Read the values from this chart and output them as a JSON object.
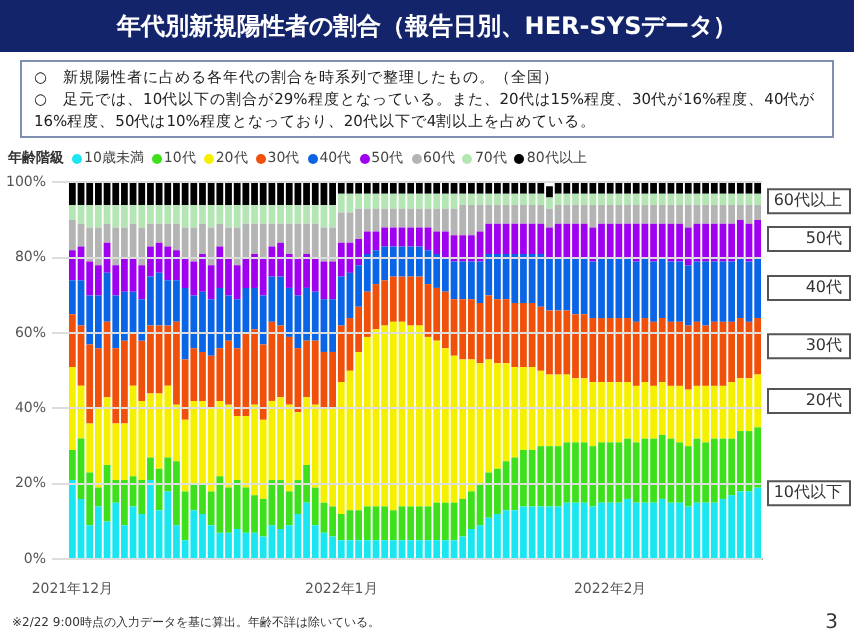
{
  "chart_data": {
    "type": "bar",
    "stacked": true,
    "title": "年代別新規陽性者の割合（報告日別、HER-SYSデータ）",
    "subtitle": "○　新規陽性者に占める各年代の割合を時系列で整理したもの。（全国）",
    "legend_title": "年齢階級",
    "legend": "top left",
    "grid": "y",
    "categories": [
      "2021年12月",
      null,
      null,
      null,
      null,
      null,
      null,
      null,
      null,
      null,
      null,
      null,
      null,
      null,
      null,
      null,
      null,
      null,
      null,
      null,
      null,
      null,
      null,
      null,
      null,
      null,
      null,
      null,
      null,
      null,
      null,
      "2022年1月",
      null,
      null,
      null,
      null,
      null,
      null,
      null,
      null,
      null,
      null,
      null,
      null,
      null,
      null,
      null,
      null,
      null,
      null,
      null,
      null,
      null,
      null,
      null,
      null,
      null,
      null,
      null,
      null,
      null,
      null,
      "2022年2月",
      null,
      null,
      null,
      null,
      null,
      null,
      null,
      null,
      null,
      null,
      null,
      null,
      null,
      null,
      null,
      null,
      null
    ],
    "ylim": [
      0,
      100
    ],
    "yticks": [
      {
        "value": 0,
        "label": "0%"
      },
      {
        "value": 20,
        "label": "20%"
      },
      {
        "value": 40,
        "label": "40%"
      },
      {
        "value": 60,
        "label": "60%"
      },
      {
        "value": 80,
        "label": "80%"
      },
      {
        "value": 100,
        "label": "100%"
      }
    ],
    "series": [
      {
        "name": "10歳未満",
        "color": "#19e6f0",
        "values": [
          21,
          16,
          9,
          14,
          10,
          15,
          9,
          14,
          12,
          21,
          13,
          18,
          9,
          5,
          13,
          12,
          9,
          7,
          7,
          8,
          7,
          7,
          6,
          9,
          8,
          9,
          12,
          15,
          9,
          7,
          6,
          5,
          5,
          5,
          5,
          5,
          5,
          5,
          5,
          5,
          5,
          5,
          5,
          5,
          5,
          6,
          8,
          9,
          11,
          12,
          13,
          13,
          14,
          14,
          14,
          14,
          14,
          15,
          15,
          15,
          14,
          15,
          15,
          15,
          16,
          15,
          15,
          15,
          16,
          15,
          15,
          14,
          15,
          15,
          15,
          16,
          17,
          18,
          18,
          19
        ]
      },
      {
        "name": "10代",
        "color": "#3de01a",
        "values": [
          8,
          16,
          14,
          5,
          15,
          6,
          12,
          8,
          9,
          6,
          11,
          9,
          17,
          13,
          7,
          8,
          9,
          15,
          12,
          13,
          12,
          10,
          10,
          12,
          13,
          9,
          9,
          10,
          10,
          8,
          8,
          7,
          8,
          8,
          9,
          9,
          9,
          8,
          9,
          9,
          9,
          9,
          10,
          10,
          10,
          10,
          10,
          11,
          12,
          12,
          13,
          14,
          15,
          15,
          16,
          16,
          16,
          16,
          16,
          16,
          16,
          16,
          16,
          16,
          16,
          16,
          17,
          17,
          17,
          17,
          16,
          16,
          17,
          16,
          17,
          16,
          15,
          16,
          16,
          16
        ]
      },
      {
        "name": "20代",
        "color": "#f5f000",
        "values": [
          22,
          14,
          13,
          21,
          18,
          15,
          15,
          24,
          21,
          17,
          20,
          19,
          15,
          19,
          22,
          22,
          22,
          20,
          22,
          17,
          19,
          24,
          21,
          21,
          22,
          23,
          18,
          18,
          22,
          25,
          26,
          35,
          37,
          42,
          45,
          47,
          48,
          50,
          49,
          48,
          48,
          45,
          43,
          41,
          39,
          37,
          35,
          32,
          30,
          28,
          26,
          24,
          22,
          22,
          20,
          19,
          19,
          18,
          17,
          17,
          17,
          16,
          16,
          16,
          15,
          15,
          15,
          14,
          14,
          14,
          15,
          15,
          14,
          15,
          14,
          14,
          15,
          14,
          14,
          14
        ]
      },
      {
        "name": "30代",
        "color": "#f0500a",
        "values": [
          14,
          16,
          21,
          16,
          20,
          20,
          22,
          14,
          16,
          18,
          18,
          16,
          22,
          16,
          14,
          13,
          14,
          14,
          17,
          18,
          22,
          20,
          20,
          21,
          19,
          18,
          17,
          15,
          17,
          15,
          15,
          15,
          14,
          12,
          12,
          12,
          12,
          12,
          12,
          13,
          13,
          14,
          14,
          15,
          15,
          16,
          16,
          16,
          17,
          17,
          17,
          17,
          17,
          17,
          17,
          17,
          17,
          17,
          17,
          17,
          17,
          17,
          17,
          17,
          17,
          17,
          17,
          17,
          17,
          17,
          17,
          17,
          17,
          16,
          17,
          17,
          16,
          16,
          15,
          15
        ]
      },
      {
        "name": "40代",
        "color": "#0a64e6",
        "values": [
          9,
          12,
          13,
          14,
          13,
          14,
          13,
          11,
          11,
          13,
          14,
          12,
          11,
          19,
          14,
          16,
          15,
          16,
          12,
          13,
          12,
          11,
          13,
          12,
          13,
          13,
          14,
          14,
          13,
          14,
          14,
          13,
          12,
          11,
          10,
          9,
          9,
          8,
          8,
          8,
          8,
          9,
          9,
          9,
          10,
          10,
          10,
          11,
          11,
          12,
          12,
          13,
          13,
          13,
          14,
          14,
          14,
          14,
          15,
          15,
          15,
          16,
          16,
          16,
          16,
          16,
          16,
          16,
          16,
          16,
          16,
          16,
          16,
          17,
          16,
          16,
          16,
          16,
          16,
          16
        ]
      },
      {
        "name": "50代",
        "color": "#a000f0",
        "values": [
          8,
          9,
          9,
          8,
          8,
          8,
          9,
          9,
          9,
          8,
          8,
          9,
          8,
          8,
          9,
          10,
          9,
          11,
          10,
          9,
          8,
          9,
          10,
          8,
          9,
          9,
          10,
          9,
          9,
          10,
          10,
          9,
          8,
          7,
          6,
          5,
          5,
          5,
          5,
          5,
          5,
          6,
          6,
          7,
          7,
          7,
          7,
          8,
          8,
          8,
          8,
          8,
          8,
          8,
          8,
          8,
          9,
          9,
          9,
          9,
          9,
          9,
          9,
          9,
          9,
          10,
          9,
          10,
          9,
          10,
          10,
          10,
          10,
          10,
          10,
          10,
          10,
          10,
          10,
          10
        ]
      },
      {
        "name": "60代",
        "color": "#b4b4b4",
        "values": [
          8,
          6,
          9,
          10,
          5,
          10,
          8,
          9,
          10,
          6,
          5,
          6,
          7,
          8,
          9,
          8,
          10,
          6,
          8,
          10,
          9,
          8,
          9,
          6,
          5,
          8,
          9,
          8,
          9,
          9,
          9,
          8,
          8,
          8,
          6,
          6,
          5,
          5,
          5,
          5,
          5,
          5,
          6,
          6,
          7,
          8,
          8,
          7,
          5,
          5,
          5,
          5,
          5,
          5,
          5,
          5,
          5,
          5,
          5,
          5,
          6,
          5,
          5,
          5,
          5,
          5,
          5,
          5,
          5,
          5,
          5,
          6,
          5,
          5,
          5,
          5,
          5,
          4,
          5,
          4
        ]
      },
      {
        "name": "70代",
        "color": "#b4e6b4",
        "values": [
          4,
          5,
          6,
          6,
          5,
          6,
          6,
          5,
          6,
          5,
          5,
          5,
          5,
          6,
          6,
          5,
          6,
          5,
          6,
          6,
          5,
          5,
          5,
          5,
          5,
          5,
          5,
          5,
          5,
          6,
          6,
          5,
          5,
          4,
          4,
          4,
          4,
          4,
          4,
          4,
          4,
          4,
          4,
          4,
          4,
          3,
          3,
          3,
          3,
          3,
          3,
          3,
          3,
          3,
          3,
          3,
          3,
          3,
          3,
          3,
          3,
          3,
          3,
          3,
          3,
          3,
          3,
          3,
          3,
          3,
          3,
          3,
          3,
          3,
          3,
          3,
          3,
          3,
          3,
          3
        ]
      },
      {
        "name": "80代以上",
        "color": "#000000",
        "values": [
          6,
          6,
          6,
          6,
          6,
          6,
          6,
          6,
          6,
          6,
          6,
          6,
          6,
          6,
          6,
          6,
          6,
          6,
          6,
          6,
          6,
          6,
          6,
          6,
          6,
          6,
          6,
          6,
          6,
          6,
          6,
          3,
          3,
          3,
          3,
          3,
          3,
          3,
          3,
          3,
          3,
          3,
          3,
          3,
          3,
          3,
          3,
          3,
          3,
          3,
          3,
          3,
          3,
          3,
          3,
          3,
          3,
          3,
          3,
          3,
          3,
          3,
          3,
          3,
          3,
          3,
          3,
          3,
          3,
          3,
          3,
          3,
          3,
          3,
          3,
          3,
          3,
          3,
          3,
          3
        ]
      }
    ],
    "annotations": [
      "60代以上",
      "50代",
      "40代",
      "30代",
      "20代",
      "10代以下",
      "○　足元では、10代以下の割合が29%程度となっている。また、20代は15%程度、30代が16%程度、40代が16%程度、50代は10%程度となっており、20代以下で4割以上を占めている。",
      "※2/22 9:00時点の入力データを基に算出。年齢不詳は除いている。",
      "3"
    ]
  }
}
